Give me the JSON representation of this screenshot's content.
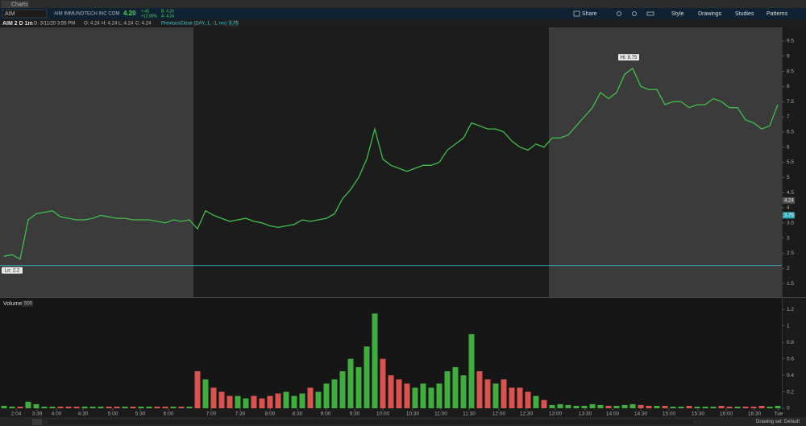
{
  "window": {
    "tab": "Charts"
  },
  "toolbar": {
    "symbol": "AIM",
    "description": "AIM IMMUNOTECH INC COM",
    "last": "4.20",
    "change": "+.45",
    "change_pct": "+12.00%",
    "bid": "B: 4.20",
    "ask": "A: 4.24",
    "buttons": [
      "Share",
      "Style",
      "Drawings",
      "Studies",
      "Patterns"
    ]
  },
  "info": {
    "study": "AIM 2 D 1m",
    "date": "D: 3/11/20 3:55 PM",
    "open": "O: 4.24",
    "high": "H: 4.24",
    "low": "L: 4.24",
    "close": "C: 4.24",
    "prev_close_study": "PreviousClose (DAY, 1, -1, no)",
    "prev_close_value": "3.75"
  },
  "footer": {
    "drawing_set": "Drawing set: Default"
  },
  "chart_data": [
    {
      "type": "line",
      "color": "#3fbf4a",
      "values": [
        2.4,
        2.45,
        2.3,
        3.6,
        3.8,
        3.85,
        3.9,
        3.7,
        3.65,
        3.6,
        3.6,
        3.65,
        3.75,
        3.7,
        3.65,
        3.65,
        3.6,
        3.6,
        3.6,
        3.55,
        3.5,
        3.6,
        3.55,
        3.6,
        3.3,
        3.9,
        3.75,
        3.65,
        3.55,
        3.6,
        3.65,
        3.55,
        3.5,
        3.4,
        3.35,
        3.4,
        3.45,
        3.6,
        3.55,
        3.6,
        3.65,
        3.8,
        4.3,
        4.6,
        5.0,
        5.6,
        6.6,
        5.6,
        5.4,
        5.3,
        5.2,
        5.3,
        5.4,
        5.4,
        5.5,
        5.9,
        6.1,
        6.3,
        6.8,
        6.7,
        6.6,
        6.6,
        6.5,
        6.2,
        6.0,
        5.9,
        6.1,
        6.0,
        6.3,
        6.3,
        6.4,
        6.7,
        7.0,
        7.3,
        7.8,
        7.6,
        7.8,
        8.4,
        8.6,
        8.0,
        7.9,
        7.9,
        7.4,
        7.5,
        7.5,
        7.3,
        7.4,
        7.4,
        7.6,
        7.5,
        7.3,
        7.3,
        6.9,
        6.8,
        6.6,
        6.7,
        7.4
      ],
      "xlim": [
        -0.5,
        96.5
      ],
      "ylim": [
        1.05,
        9.95
      ],
      "yticks": [
        1.5,
        2,
        2.5,
        3,
        3.5,
        4,
        4.5,
        5,
        5.5,
        6,
        6.5,
        7,
        7.5,
        8,
        8.5,
        9,
        9.5
      ],
      "annotations": [
        {
          "text": "Hi: 8.75",
          "value": 8.75,
          "x": 77.5
        },
        {
          "text": "Lo: 2.2",
          "value": 2.2,
          "x": 0
        }
      ],
      "last_price": 4.24,
      "previous_close": 3.75
    },
    {
      "type": "bar",
      "title": "Volume",
      "aggregation": 500,
      "up_color": "#3fae3f",
      "down_color": "#d9534f",
      "values": [
        0.03,
        0.02,
        0.02,
        0.08,
        0.05,
        0.02,
        0.02,
        0.02,
        0.02,
        0.02,
        0.02,
        0.02,
        0.02,
        0.02,
        0.02,
        0.02,
        0.02,
        0.02,
        0.02,
        0.02,
        0.02,
        0.02,
        0.02,
        0.02,
        0.45,
        0.35,
        0.25,
        0.2,
        0.15,
        0.15,
        0.12,
        0.15,
        0.12,
        0.15,
        0.18,
        0.2,
        0.15,
        0.18,
        0.25,
        0.2,
        0.3,
        0.35,
        0.45,
        0.6,
        0.5,
        0.75,
        1.15,
        0.6,
        0.4,
        0.35,
        0.3,
        0.25,
        0.3,
        0.25,
        0.3,
        0.45,
        0.5,
        0.4,
        0.9,
        0.45,
        0.35,
        0.3,
        0.35,
        0.25,
        0.25,
        0.2,
        0.15,
        0.1,
        0.04,
        0.05,
        0.04,
        0.03,
        0.03,
        0.05,
        0.04,
        0.03,
        0.03,
        0.04,
        0.05,
        0.04,
        0.03,
        0.03,
        0.03,
        0.02,
        0.02,
        0.03,
        0.02,
        0.02,
        0.02,
        0.03,
        0.02,
        0.02,
        0.02,
        0.02,
        0.03,
        0.02,
        0.03
      ],
      "xlim": [
        -0.5,
        96.5
      ],
      "ylim": [
        0,
        1.3
      ],
      "yticks": [
        0,
        0.2,
        0.4,
        0.6,
        0.8,
        1,
        1.2
      ],
      "xticks": [
        {
          "value": 1.5,
          "label": "2:04"
        },
        {
          "value": 4.1,
          "label": "3:39"
        },
        {
          "value": 6.5,
          "label": "4:00"
        },
        {
          "value": 9.8,
          "label": "4:30"
        },
        {
          "value": 13.5,
          "label": "5:00"
        },
        {
          "value": 16.9,
          "label": "5:30"
        },
        {
          "value": 20.4,
          "label": "6:00"
        },
        {
          "value": 25.7,
          "label": "7:00"
        },
        {
          "value": 29.3,
          "label": "7:30"
        },
        {
          "value": 33,
          "label": "8:00"
        },
        {
          "value": 36.4,
          "label": "8:30"
        },
        {
          "value": 39.9,
          "label": "9:00"
        },
        {
          "value": 43.5,
          "label": "9:30"
        },
        {
          "value": 47,
          "label": "10:00"
        },
        {
          "value": 50.7,
          "label": "10:30"
        },
        {
          "value": 54.2,
          "label": "11:00"
        },
        {
          "value": 57.7,
          "label": "11:30"
        },
        {
          "value": 61.4,
          "label": "12:00"
        },
        {
          "value": 64.8,
          "label": "12:30"
        },
        {
          "value": 68.4,
          "label": "13:00"
        },
        {
          "value": 72.1,
          "label": "13:30"
        },
        {
          "value": 75.5,
          "label": "14:00"
        },
        {
          "value": 79,
          "label": "14:30"
        },
        {
          "value": 82.5,
          "label": "15:00"
        },
        {
          "value": 86.1,
          "label": "15:30"
        },
        {
          "value": 89.6,
          "label": "16:00"
        },
        {
          "value": 93.1,
          "label": "16:30"
        },
        {
          "value": 96.1,
          "label": "Tue"
        }
      ]
    }
  ]
}
